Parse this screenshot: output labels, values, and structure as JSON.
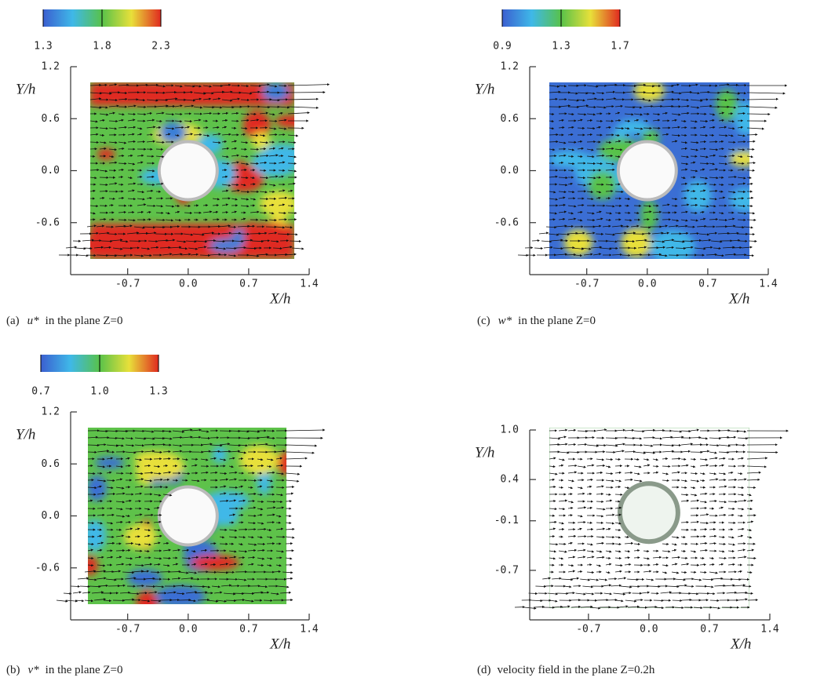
{
  "chart_data": [
    {
      "type": "vector-field",
      "colorbar": {
        "lim": [
          1.3,
          2.3
        ],
        "ticks": [
          1.3,
          1.8,
          2.3
        ]
      },
      "ylim": [
        -1.2,
        1.2
      ],
      "yticks": [
        1.2,
        0.6,
        {
          "value": 0,
          "label": "0.0"
        },
        -0.6
      ],
      "xlim": [
        -1.36,
        1.4
      ],
      "xticks": [
        -0.7,
        {
          "value": 0,
          "label": "0.0"
        },
        0.7,
        1.4
      ],
      "ylabel": "Y/h",
      "xlabel": "X/h",
      "caption_label": "(a)",
      "caption_variable": "u*",
      "caption_text": "in the plane Z=0"
    },
    {
      "type": "vector-field",
      "colorbar": {
        "lim": [
          0.9,
          1.7
        ],
        "ticks": [
          0.9,
          1.3,
          1.7
        ]
      },
      "ylim": [
        -1.2,
        1.2
      ],
      "yticks": [
        1.2,
        0.6,
        {
          "value": 0,
          "label": "0.0"
        },
        -0.6
      ],
      "xlim": [
        -1.36,
        1.4
      ],
      "xticks": [
        -0.7,
        {
          "value": 0,
          "label": "0.0"
        },
        0.7,
        1.4
      ],
      "ylabel": "Y/h",
      "xlabel": "X/h",
      "caption_label": "(c)",
      "caption_variable": "w*",
      "caption_text": "in the plane Z=0"
    },
    {
      "type": "vector-field",
      "colorbar": {
        "lim": [
          0.7,
          1.3
        ],
        "ticks": [
          0.7,
          {
            "value": 1,
            "label": "1.0"
          },
          1.3
        ]
      },
      "ylim": [
        -1.2,
        1.2
      ],
      "yticks": [
        1.2,
        0.6,
        {
          "value": 0,
          "label": "0.0"
        },
        -0.6
      ],
      "xlim": [
        -1.36,
        1.4
      ],
      "xticks": [
        -0.7,
        {
          "value": 0,
          "label": "0.0"
        },
        0.7,
        1.4
      ],
      "ylabel": "Y/h",
      "xlabel": "X/h",
      "caption_label": "(b)",
      "caption_variable": "v*",
      "caption_text": "in the plane Z=0"
    },
    {
      "type": "vector-field",
      "ylim": [
        -1.3,
        1.0
      ],
      "yticks": [
        {
          "value": 1,
          "label": "1.0"
        },
        0.4,
        -0.1,
        -0.7
      ],
      "xlim": [
        -1.38,
        1.4
      ],
      "xticks": [
        -0.7,
        {
          "value": 0,
          "label": "0.0"
        },
        0.7,
        1.4
      ],
      "ylabel": "Y/h",
      "xlabel": "X/h",
      "caption_label": "(d)",
      "caption_text": "velocity field in the plane Z=0.2h"
    }
  ]
}
